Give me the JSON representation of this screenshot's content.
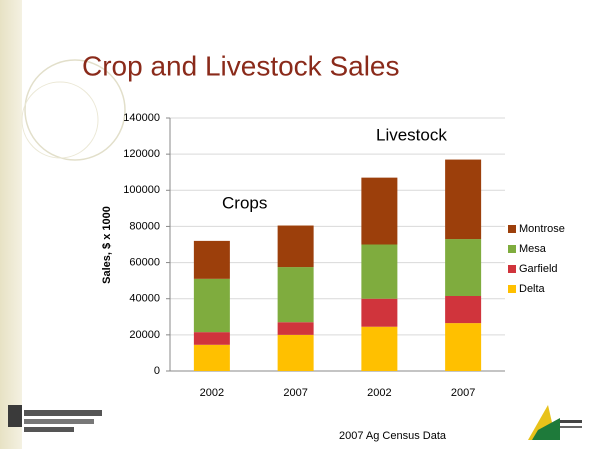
{
  "chart_data": {
    "type": "stacked_bar",
    "title": "Crop and Livestock Sales",
    "y_label": "Sales, $ x 1000",
    "categories": [
      "2002",
      "2007",
      "2002",
      "2007"
    ],
    "series": [
      {
        "name": "Delta",
        "color": "#ffc000",
        "values": [
          14500,
          20000,
          24500,
          26500
        ]
      },
      {
        "name": "Garfield",
        "color": "#d0343c",
        "values": [
          7000,
          7000,
          15500,
          15000
        ]
      },
      {
        "name": "Mesa",
        "color": "#7fac3e",
        "values": [
          29500,
          30500,
          30000,
          31500
        ]
      },
      {
        "name": "Montrose",
        "color": "#9c3f0b",
        "values": [
          21000,
          23000,
          37000,
          44000
        ]
      }
    ],
    "ylim": [
      0,
      140000
    ],
    "yticks": [
      0,
      20000,
      40000,
      60000,
      80000,
      100000,
      120000,
      140000
    ],
    "grid": true,
    "legend": "right",
    "annotations": [
      "Crops",
      "Livestock"
    ],
    "footer": "2007 Ag Census Data"
  }
}
